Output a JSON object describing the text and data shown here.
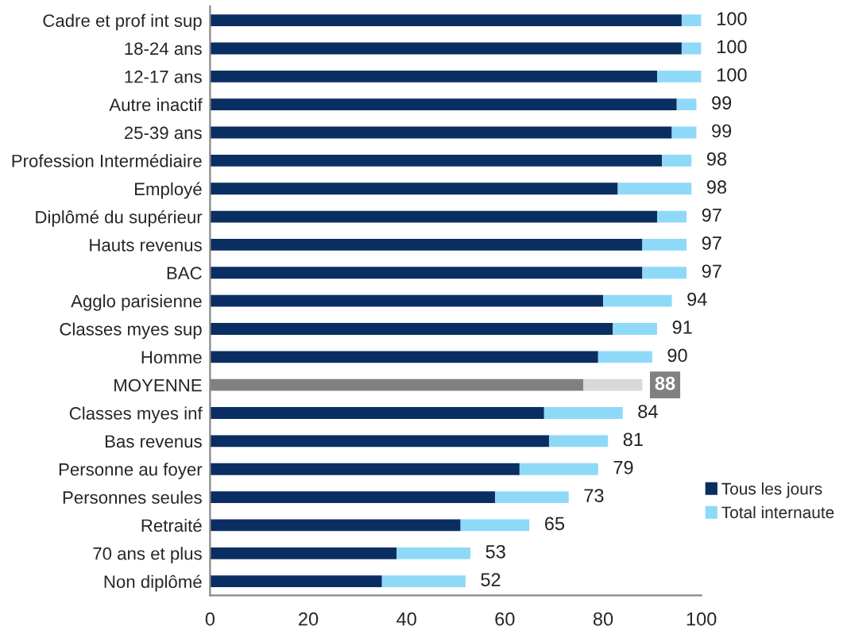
{
  "chart_data": {
    "type": "bar",
    "orientation": "horizontal",
    "stacked": true,
    "categories": [
      "Cadre et prof int sup",
      "18-24 ans",
      "12-17 ans",
      "Autre inactif",
      "25-39 ans",
      "Profession Intermédiaire",
      "Employé",
      "Diplômé du supérieur",
      "Hauts revenus",
      "BAC",
      "Agglo parisienne",
      "Classes myes sup",
      "Homme",
      "MOYENNE",
      "Classes myes inf",
      "Bas revenus",
      "Personne au foyer",
      "Personnes seules",
      "Retraité",
      "70 ans et plus",
      "Non diplômé"
    ],
    "series": [
      {
        "name": "Tous les jours",
        "color": "#0b2e62",
        "values": [
          96,
          96,
          91,
          95,
          94,
          92,
          83,
          91,
          88,
          88,
          80,
          82,
          79,
          76,
          68,
          69,
          63,
          58,
          51,
          38,
          35
        ],
        "colors": [
          "#0b2e62",
          "#0b2e62",
          "#0b2e62",
          "#0b2e62",
          "#0b2e62",
          "#0b2e62",
          "#0b2e62",
          "#0b2e62",
          "#0b2e62",
          "#0b2e62",
          "#0b2e62",
          "#0b2e62",
          "#0b2e62",
          "#808080",
          "#0b2e62",
          "#0b2e62",
          "#0b2e62",
          "#0b2e62",
          "#0b2e62",
          "#0b2e62",
          "#0b2e62"
        ]
      },
      {
        "name": "Total internaute",
        "color": "#8fd9f8",
        "values": [
          4,
          4,
          9,
          4,
          5,
          6,
          15,
          6,
          9,
          9,
          14,
          9,
          11,
          12,
          16,
          12,
          16,
          15,
          14,
          15,
          17
        ],
        "colors": [
          "#8fd9f8",
          "#8fd9f8",
          "#8fd9f8",
          "#8fd9f8",
          "#8fd9f8",
          "#8fd9f8",
          "#8fd9f8",
          "#8fd9f8",
          "#8fd9f8",
          "#8fd9f8",
          "#8fd9f8",
          "#8fd9f8",
          "#8fd9f8",
          "#d9d9d9",
          "#8fd9f8",
          "#8fd9f8",
          "#8fd9f8",
          "#8fd9f8",
          "#8fd9f8",
          "#8fd9f8",
          "#8fd9f8"
        ]
      }
    ],
    "totals": [
      "100",
      "100",
      "100",
      "99",
      "99",
      "98",
      "98",
      "97",
      "97",
      "97",
      "94",
      "91",
      "90",
      "88",
      "84",
      "81",
      "79",
      "73",
      "65",
      "53",
      "52"
    ],
    "xlim": [
      0,
      100
    ],
    "xticks": [
      0,
      20,
      40,
      60,
      80,
      100
    ],
    "legend": "right",
    "grid": false
  }
}
